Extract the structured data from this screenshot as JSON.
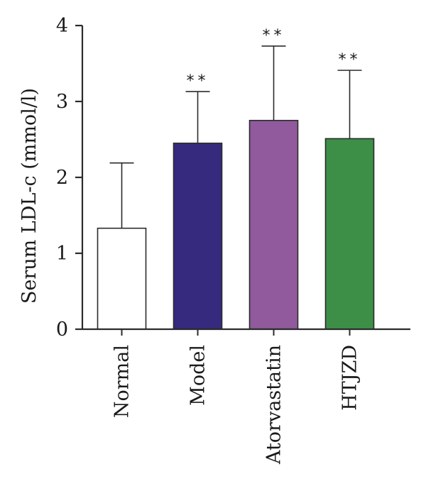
{
  "chart_data": {
    "type": "bar",
    "ylabel": "Serum LDL-c (mmol/l)",
    "xlabel": "",
    "ylim": [
      0,
      4
    ],
    "yticks": [
      0,
      1,
      2,
      3,
      4
    ],
    "grid": false,
    "categories": [
      "Normal",
      "Model",
      "Atorvastatin",
      "HTJZD"
    ],
    "values": [
      1.33,
      2.45,
      2.75,
      2.51
    ],
    "errors": [
      0.86,
      0.68,
      0.98,
      0.9
    ],
    "colors": [
      "#ffffff",
      "#352a7e",
      "#905a9c",
      "#3d8f48"
    ],
    "significance": [
      "",
      "**",
      "**",
      "**"
    ]
  }
}
